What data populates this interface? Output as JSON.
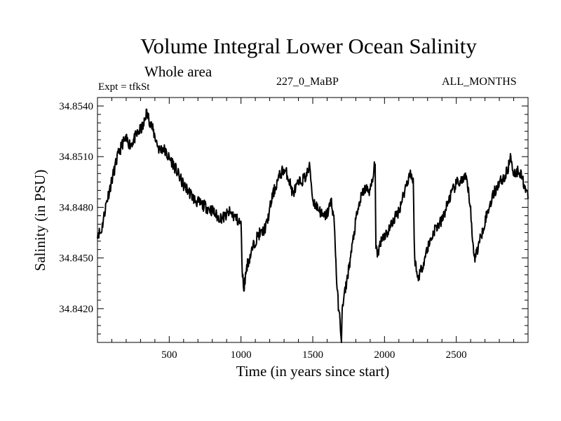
{
  "chart_data": {
    "type": "line",
    "title": "Volume Integral Lower Ocean Salinity",
    "subtitle": "Whole area",
    "experiment_label": "Expt = tfkSt",
    "run_label": "227_0_MaBP",
    "months_label": "ALL_MONTHS",
    "xlabel": "Time (in years since start)",
    "ylabel": "Salinity (in PSU)",
    "xlim": [
      0,
      3000
    ],
    "ylim": [
      34.84,
      34.8545
    ],
    "x_ticks": [
      500,
      1000,
      1500,
      2000,
      2500
    ],
    "x_tick_labels": [
      "500",
      "1000",
      "1500",
      "2000",
      "2500"
    ],
    "y_ticks": [
      34.842,
      34.845,
      34.848,
      34.851,
      34.854
    ],
    "y_tick_labels": [
      "34.8420",
      "34.8450",
      "34.8480",
      "34.8510",
      "34.8540"
    ],
    "line_color": "#000000",
    "series": [
      {
        "name": "Salinity",
        "x": [
          0,
          25,
          60,
          100,
          140,
          175,
          200,
          230,
          260,
          290,
          320,
          340,
          370,
          400,
          430,
          460,
          490,
          520,
          560,
          600,
          640,
          680,
          720,
          760,
          800,
          840,
          880,
          920,
          960,
          1000,
          1010,
          1020,
          1040,
          1060,
          1090,
          1120,
          1150,
          1180,
          1220,
          1260,
          1290,
          1320,
          1340,
          1360,
          1400,
          1450,
          1480,
          1500,
          1550,
          1570,
          1600,
          1630,
          1650,
          1670,
          1690,
          1700,
          1705,
          1715,
          1740,
          1770,
          1800,
          1830,
          1860,
          1900,
          1920,
          1935,
          1940,
          1950,
          1980,
          2020,
          2060,
          2100,
          2140,
          2180,
          2200,
          2210,
          2230,
          2260,
          2300,
          2350,
          2400,
          2450,
          2500,
          2540,
          2570,
          2600,
          2610,
          2630,
          2660,
          2700,
          2750,
          2800,
          2840,
          2860,
          2880,
          2900,
          2940,
          2980,
          3000
        ],
        "y": [
          34.8465,
          34.8465,
          34.8482,
          34.8496,
          34.851,
          34.8518,
          34.852,
          34.8517,
          34.8521,
          34.8525,
          34.8528,
          34.8536,
          34.853,
          34.8522,
          34.8514,
          34.8515,
          34.851,
          34.8507,
          34.85,
          34.8493,
          34.8489,
          34.8484,
          34.8482,
          34.848,
          34.8478,
          34.8474,
          34.8474,
          34.8477,
          34.8474,
          34.847,
          34.844,
          34.8432,
          34.8445,
          34.845,
          34.8458,
          34.8464,
          34.8465,
          34.847,
          34.8487,
          34.8497,
          34.8502,
          34.85,
          34.8495,
          34.8488,
          34.8494,
          34.8498,
          34.8504,
          34.8484,
          34.8478,
          34.8474,
          34.8476,
          34.8484,
          34.8471,
          34.843,
          34.8412,
          34.8402,
          34.8418,
          34.8425,
          34.8438,
          34.8454,
          34.8472,
          34.8484,
          34.8491,
          34.849,
          34.8497,
          34.8508,
          34.8455,
          34.8452,
          34.8462,
          34.8465,
          34.8472,
          34.8478,
          34.849,
          34.8501,
          34.8495,
          34.845,
          34.8438,
          34.8444,
          34.8456,
          34.8467,
          34.8472,
          34.8485,
          34.8494,
          34.8496,
          34.8497,
          34.848,
          34.8462,
          34.845,
          34.8459,
          34.8472,
          34.8486,
          34.8495,
          34.8498,
          34.8503,
          34.851,
          34.85,
          34.8502,
          34.8492,
          34.8485
        ]
      }
    ]
  }
}
